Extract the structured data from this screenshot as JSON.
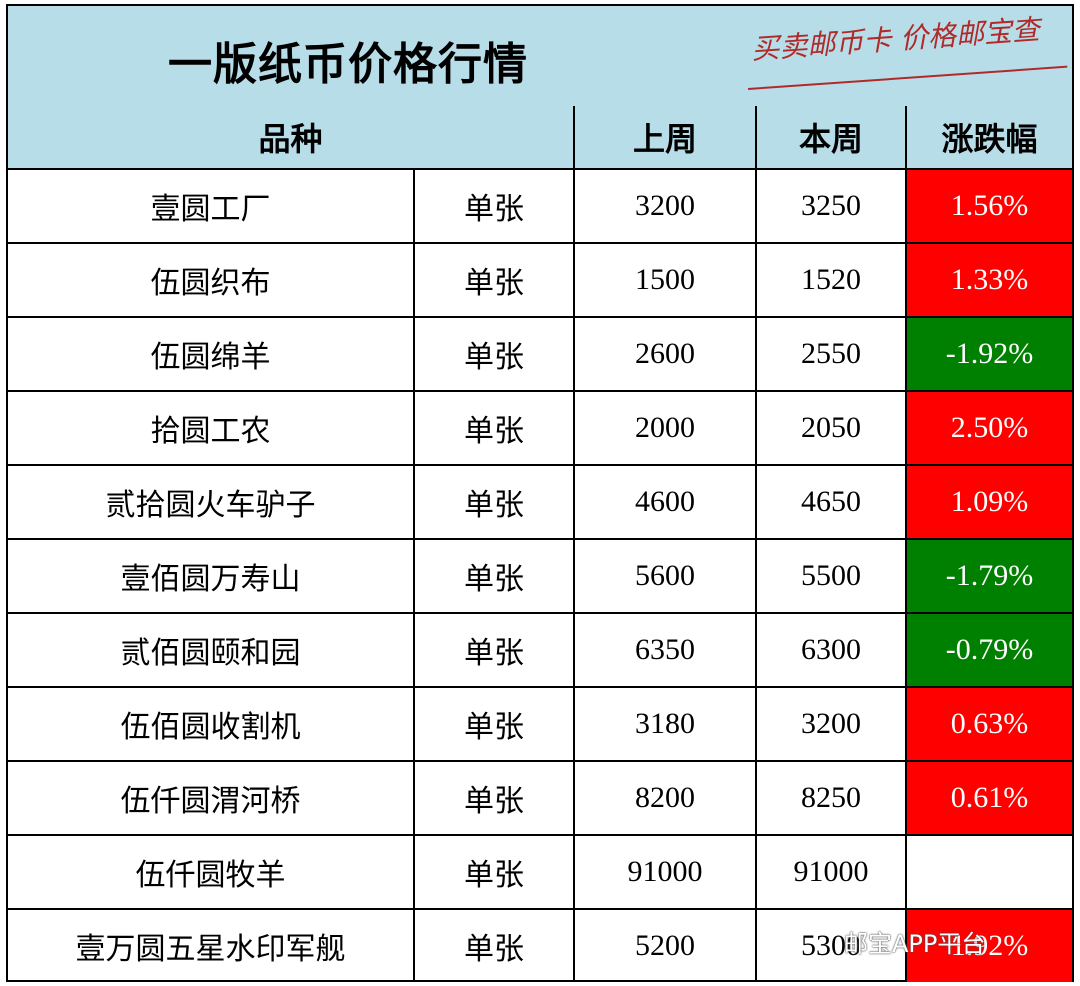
{
  "header": {
    "title": "一版纸币价格行情",
    "slogan": "买卖邮币卡 价格邮宝查"
  },
  "columns": {
    "variety": "品种",
    "last_week": "上周",
    "this_week": "本周",
    "change": "涨跌幅"
  },
  "rows": [
    {
      "name": "壹圆工厂",
      "unit": "单张",
      "last": "3200",
      "this": "3250",
      "change": "1.56%",
      "trend": "up"
    },
    {
      "name": "伍圆织布",
      "unit": "单张",
      "last": "1500",
      "this": "1520",
      "change": "1.33%",
      "trend": "up"
    },
    {
      "name": "伍圆绵羊",
      "unit": "单张",
      "last": "2600",
      "this": "2550",
      "change": "-1.92%",
      "trend": "down"
    },
    {
      "name": "拾圆工农",
      "unit": "单张",
      "last": "2000",
      "this": "2050",
      "change": "2.50%",
      "trend": "up"
    },
    {
      "name": "贰拾圆火车驴子",
      "unit": "单张",
      "last": "4600",
      "this": "4650",
      "change": "1.09%",
      "trend": "up"
    },
    {
      "name": "壹佰圆万寿山",
      "unit": "单张",
      "last": "5600",
      "this": "5500",
      "change": "-1.79%",
      "trend": "down"
    },
    {
      "name": "贰佰圆颐和园",
      "unit": "单张",
      "last": "6350",
      "this": "6300",
      "change": "-0.79%",
      "trend": "down"
    },
    {
      "name": "伍佰圆收割机",
      "unit": "单张",
      "last": "3180",
      "this": "3200",
      "change": "0.63%",
      "trend": "up"
    },
    {
      "name": "伍仟圆渭河桥",
      "unit": "单张",
      "last": "8200",
      "this": "8250",
      "change": "0.61%",
      "trend": "up"
    },
    {
      "name": "伍仟圆牧羊",
      "unit": "单张",
      "last": "91000",
      "this": "91000",
      "change": "",
      "trend": "flat"
    },
    {
      "name": "壹万圆五星水印军舰",
      "unit": "单张",
      "last": "5200",
      "this": "5300",
      "change": "1.92%",
      "trend": "up"
    }
  ],
  "colors": {
    "header_bg": "#b7dde8",
    "up": "#ff0000",
    "down": "#008000",
    "slogan": "#b02a2a"
  },
  "watermark": "邮宝APP平台"
}
